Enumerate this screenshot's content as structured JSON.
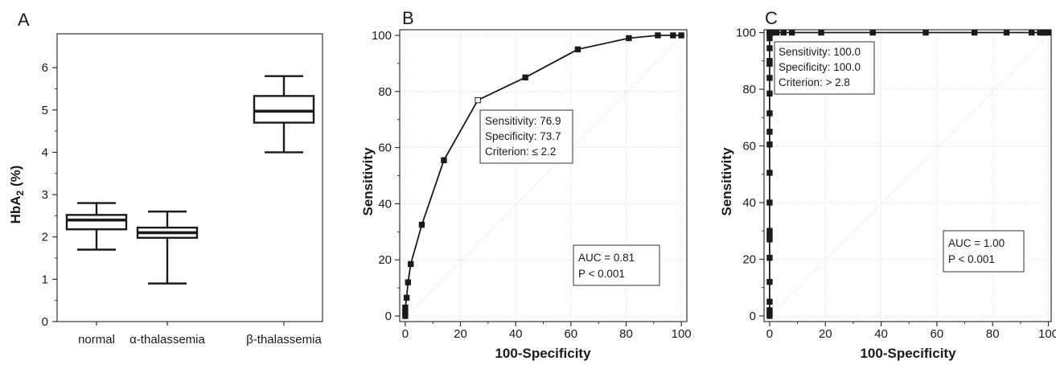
{
  "chart_data": [
    {
      "panel": "A",
      "type": "box",
      "ylabel_main": "HbA",
      "ylabel_sub": "2",
      "ylabel_rest": " (%)",
      "ylim": [
        0,
        6.8
      ],
      "yticks": [
        0,
        1,
        2,
        3,
        4,
        5,
        6
      ],
      "grid": false,
      "categories": [
        "normal",
        "α-thalassemia",
        "β-thalassemia"
      ],
      "boxes": [
        {
          "min": 1.7,
          "q1": 2.18,
          "median": 2.4,
          "q3": 2.52,
          "max": 2.8
        },
        {
          "min": 0.9,
          "q1": 1.98,
          "median": 2.1,
          "q3": 2.22,
          "max": 2.6
        },
        {
          "min": 4.0,
          "q1": 4.7,
          "median": 4.97,
          "q3": 5.33,
          "max": 5.8
        }
      ]
    },
    {
      "panel": "B",
      "type": "line",
      "xlabel": "100-Specificity",
      "ylabel": "Sensitivity",
      "xlim": [
        -2,
        102
      ],
      "ylim": [
        -2,
        102
      ],
      "xticks": [
        0,
        20,
        40,
        60,
        80,
        100
      ],
      "yticks": [
        0,
        20,
        40,
        60,
        80,
        100
      ],
      "grid": true,
      "series": [
        {
          "x": [
            0,
            0,
            0,
            0.5,
            1,
            2,
            6,
            14,
            26.3,
            43.5,
            62.5,
            81,
            91.5,
            97,
            100
          ],
          "y": [
            0,
            1.5,
            3,
            6.5,
            12,
            18.5,
            32.5,
            55.5,
            76.9,
            85,
            95,
            99,
            100,
            100,
            100
          ]
        }
      ],
      "highlight": {
        "x": 26.3,
        "y": 76.9
      },
      "criterion_box": [
        "Sensitivity: 76.9",
        "Specificity: 73.7",
        "Criterion: ≤ 2.2"
      ],
      "auc_box": [
        "AUC = 0.81",
        "P < 0.001"
      ]
    },
    {
      "panel": "C",
      "type": "line",
      "xlabel": "100-Specificity",
      "ylabel": "Sensitivity",
      "xlim": [
        -2,
        101
      ],
      "ylim": [
        -2,
        101
      ],
      "xticks": [
        0,
        20,
        40,
        60,
        80,
        100
      ],
      "yticks": [
        0,
        20,
        40,
        60,
        80,
        100
      ],
      "grid": true,
      "series": [
        {
          "x": [
            0,
            0,
            0,
            0,
            0,
            0,
            0,
            0,
            0,
            0,
            0,
            0,
            0,
            0,
            0,
            0,
            0,
            0,
            0,
            0,
            0,
            0,
            1,
            2.5,
            5,
            8,
            18.5,
            37,
            56,
            73.5,
            85,
            94,
            97,
            98,
            99,
            100
          ],
          "y": [
            0,
            1,
            2,
            5,
            12,
            20.5,
            27,
            28.5,
            30,
            40,
            50.5,
            60.5,
            65,
            71.5,
            78.5,
            84,
            89,
            90,
            94.5,
            98,
            99.5,
            100,
            100,
            100,
            100,
            100,
            100,
            100,
            100,
            100,
            100,
            100,
            100,
            100,
            100,
            100
          ]
        }
      ],
      "criterion_box": [
        "Sensitivity: 100.0",
        "Specificity: 100.0",
        "Criterion: > 2.8"
      ],
      "auc_box": [
        "AUC = 1.00",
        "P < 0.001"
      ]
    }
  ]
}
